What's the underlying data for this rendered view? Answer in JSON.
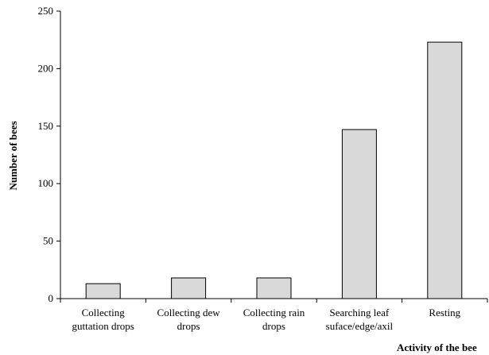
{
  "chart_data": {
    "type": "bar",
    "title": "",
    "xlabel": "Activity of the bee",
    "ylabel": "Number of bees",
    "ylim": [
      0,
      250
    ],
    "yticks": [
      "0",
      "50",
      "100",
      "150",
      "200",
      "250"
    ],
    "grid": false,
    "categories": [
      [
        "Collecting",
        "guttation drops"
      ],
      [
        "Collecting dew",
        "drops"
      ],
      [
        "Collecting rain",
        "drops"
      ],
      [
        "Searching leaf",
        "suface/edge/axil"
      ],
      [
        "Resting"
      ]
    ],
    "values": [
      13,
      18,
      18,
      147,
      223
    ],
    "colors": {
      "bar_fill": "#d9d9d9",
      "bar_stroke": "#000000",
      "axis": "#000000"
    }
  }
}
